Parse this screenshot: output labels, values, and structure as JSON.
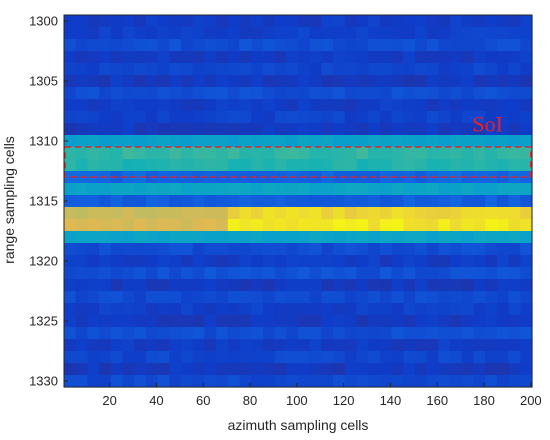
{
  "chart_data": {
    "type": "heatmap",
    "title": "",
    "xlabel": "azimuth sampling cells",
    "ylabel": "range sampling cells",
    "xlim": [
      0.5,
      200.5
    ],
    "ylim": [
      1330.5,
      1299.5
    ],
    "x_ticks": [
      20,
      40,
      60,
      80,
      100,
      120,
      140,
      160,
      180,
      200
    ],
    "y_ticks": [
      1300,
      1305,
      1310,
      1315,
      1320,
      1325,
      1330
    ],
    "colormap": "parula",
    "rows": [
      {
        "range_cell": 1300,
        "level": 0.1
      },
      {
        "range_cell": 1301,
        "level": 0.11
      },
      {
        "range_cell": 1302,
        "level": 0.15
      },
      {
        "range_cell": 1303,
        "level": 0.1
      },
      {
        "range_cell": 1304,
        "level": 0.12
      },
      {
        "range_cell": 1305,
        "level": 0.09
      },
      {
        "range_cell": 1306,
        "level": 0.15
      },
      {
        "range_cell": 1307,
        "level": 0.1
      },
      {
        "range_cell": 1308,
        "level": 0.12
      },
      {
        "range_cell": 1309,
        "level": 0.09
      },
      {
        "range_cell": 1310,
        "level": 0.38
      },
      {
        "range_cell": 1311,
        "level": 0.55
      },
      {
        "range_cell": 1312,
        "level": 0.52
      },
      {
        "range_cell": 1313,
        "level": 0.22
      },
      {
        "range_cell": 1314,
        "level": 0.4
      },
      {
        "range_cell": 1315,
        "level": 0.2
      },
      {
        "range_cell": 1316,
        "level": 0.85
      },
      {
        "range_cell": 1317,
        "level": 0.88
      },
      {
        "range_cell": 1318,
        "level": 0.4
      },
      {
        "range_cell": 1319,
        "level": 0.15
      },
      {
        "range_cell": 1320,
        "level": 0.1
      },
      {
        "range_cell": 1321,
        "level": 0.16
      },
      {
        "range_cell": 1322,
        "level": 0.09
      },
      {
        "range_cell": 1323,
        "level": 0.14
      },
      {
        "range_cell": 1324,
        "level": 0.11
      },
      {
        "range_cell": 1325,
        "level": 0.09
      },
      {
        "range_cell": 1326,
        "level": 0.15
      },
      {
        "range_cell": 1327,
        "level": 0.1
      },
      {
        "range_cell": 1328,
        "level": 0.13
      },
      {
        "range_cell": 1329,
        "level": 0.09
      },
      {
        "range_cell": 1330,
        "level": 0.14
      }
    ],
    "annotation": {
      "label": "SoI",
      "range_cells": [
        1310.5,
        1313
      ],
      "azimuth_cells": [
        1,
        200
      ],
      "color": "#e8202a",
      "style": "dashed rectangle"
    }
  }
}
